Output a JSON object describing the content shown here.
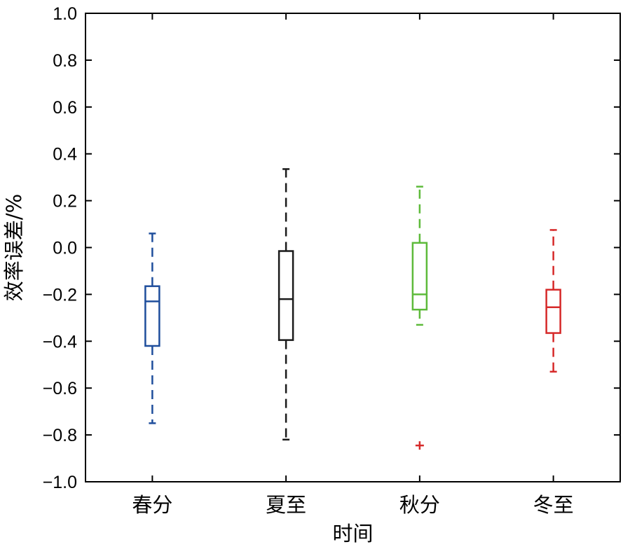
{
  "chart_data": {
    "type": "boxplot",
    "title": "",
    "xlabel": "时间",
    "ylabel": "效率误差/%",
    "ylim": [
      -1.0,
      1.0
    ],
    "yticks": [
      "1.0",
      "0.8",
      "0.6",
      "0.4",
      "0.2",
      "0.0",
      "−0.2",
      "−0.4",
      "−0.6",
      "−0.8",
      "−1.0"
    ],
    "ytick_values": [
      1.0,
      0.8,
      0.6,
      0.4,
      0.2,
      0.0,
      -0.2,
      -0.4,
      -0.6,
      -0.8,
      -1.0
    ],
    "categories": [
      "春分",
      "夏至",
      "秋分",
      "冬至"
    ],
    "boxes": [
      {
        "category": "春分",
        "whisker_low": -0.75,
        "q1": -0.42,
        "median": -0.23,
        "q3": -0.165,
        "whisker_high": 0.06,
        "outliers": [],
        "color": "#1f4e9c"
      },
      {
        "category": "夏至",
        "whisker_low": -0.82,
        "q1": -0.395,
        "median": -0.22,
        "q3": -0.015,
        "whisker_high": 0.335,
        "outliers": [],
        "color": "#1a1a1a"
      },
      {
        "category": "秋分",
        "whisker_low": -0.33,
        "q1": -0.265,
        "median": -0.2,
        "q3": 0.02,
        "whisker_high": 0.26,
        "outliers": [
          -0.845
        ],
        "color": "#5dba3a"
      },
      {
        "category": "冬至",
        "whisker_low": -0.53,
        "q1": -0.365,
        "median": -0.255,
        "q3": -0.18,
        "whisker_high": 0.075,
        "outliers": [],
        "color": "#d62a2a"
      }
    ],
    "outlier_color": "#d62a2a",
    "grid": false,
    "legend": "none"
  }
}
